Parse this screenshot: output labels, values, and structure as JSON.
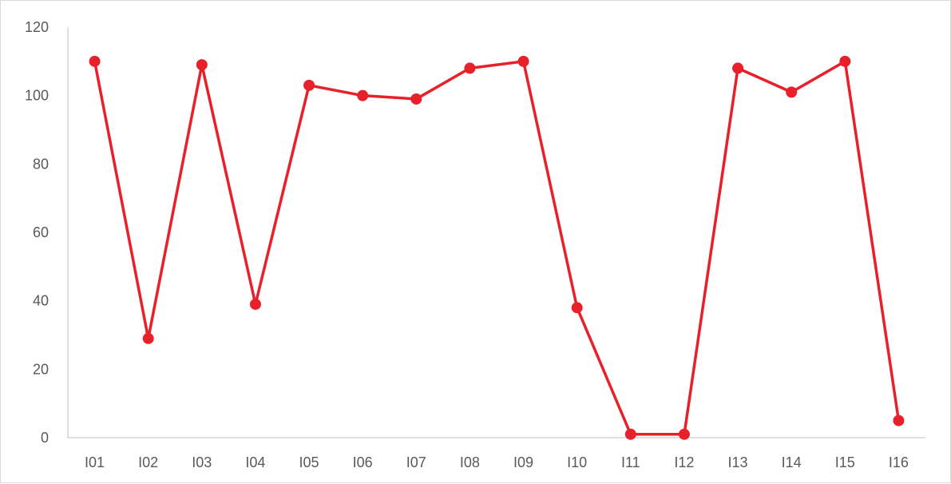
{
  "chart_data": {
    "type": "line",
    "title": "",
    "xlabel": "",
    "ylabel": "",
    "categories": [
      "I01",
      "I02",
      "I03",
      "I04",
      "I05",
      "I06",
      "I07",
      "I08",
      "I09",
      "I10",
      "I11",
      "I12",
      "I13",
      "I14",
      "I15",
      "I16"
    ],
    "series": [
      {
        "values": [
          110,
          29,
          109,
          39,
          103,
          100,
          99,
          108,
          110,
          38,
          1,
          1,
          108,
          101,
          110,
          5
        ]
      }
    ],
    "ylim": [
      0,
      120
    ],
    "yticks": [
      0,
      20,
      40,
      60,
      80,
      100,
      120
    ],
    "grid": false,
    "legend": "none",
    "colors": {
      "line": "#e8202a",
      "marker": "#e8202a",
      "axis": "#bfbfbf",
      "text": "#595959"
    }
  }
}
